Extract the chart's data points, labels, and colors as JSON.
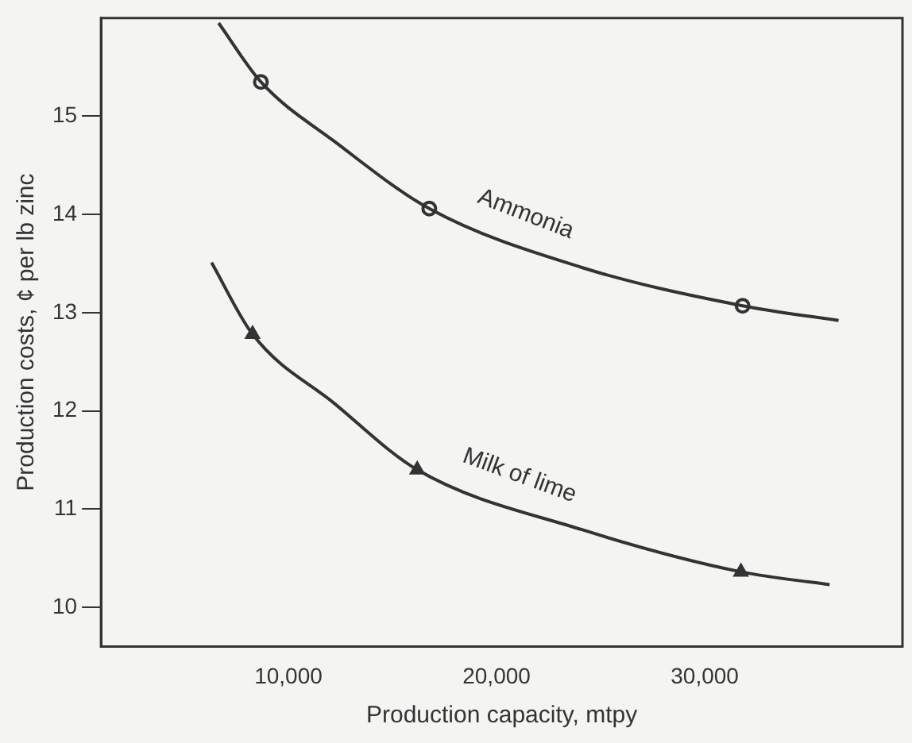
{
  "chart_data": {
    "type": "line",
    "xlabel": "Production capacity, mtpy",
    "ylabel": "Production costs, ¢ per lb zinc",
    "xlim": [
      1000,
      39500
    ],
    "ylim": [
      9.6,
      16
    ],
    "xticks": [
      {
        "value": 10000,
        "label": "10,000"
      },
      {
        "value": 20000,
        "label": "20,000"
      },
      {
        "value": 30000,
        "label": "30,000"
      }
    ],
    "yticks": [
      10,
      11,
      12,
      13,
      14,
      15
    ],
    "grid": false,
    "legend": false,
    "series": [
      {
        "name": "Ammonia",
        "type": "line",
        "color": "#333333",
        "marker": "none",
        "x": [
          6650,
          8680,
          12240,
          16770,
          24100,
          31820,
          36430
        ],
        "values": [
          15.95,
          15.35,
          14.74,
          14.06,
          13.46,
          13.07,
          12.92
        ]
      },
      {
        "name": "Milk of lime",
        "type": "line",
        "color": "#333333",
        "marker": "none",
        "x": [
          6310,
          8280,
          12240,
          16190,
          24100,
          31740,
          36000
        ],
        "values": [
          13.51,
          12.78,
          12.07,
          11.4,
          10.79,
          10.36,
          10.23
        ]
      },
      {
        "type": "scatter",
        "color": "#333333",
        "marker": "circle",
        "x": [
          8680,
          16770,
          31820
        ],
        "values": [
          15.35,
          14.06,
          13.07
        ]
      },
      {
        "type": "scatter",
        "color": "#333333",
        "marker": "triangle",
        "x": [
          8280,
          16190,
          31740
        ],
        "values": [
          12.78,
          11.4,
          10.36
        ]
      }
    ]
  }
}
